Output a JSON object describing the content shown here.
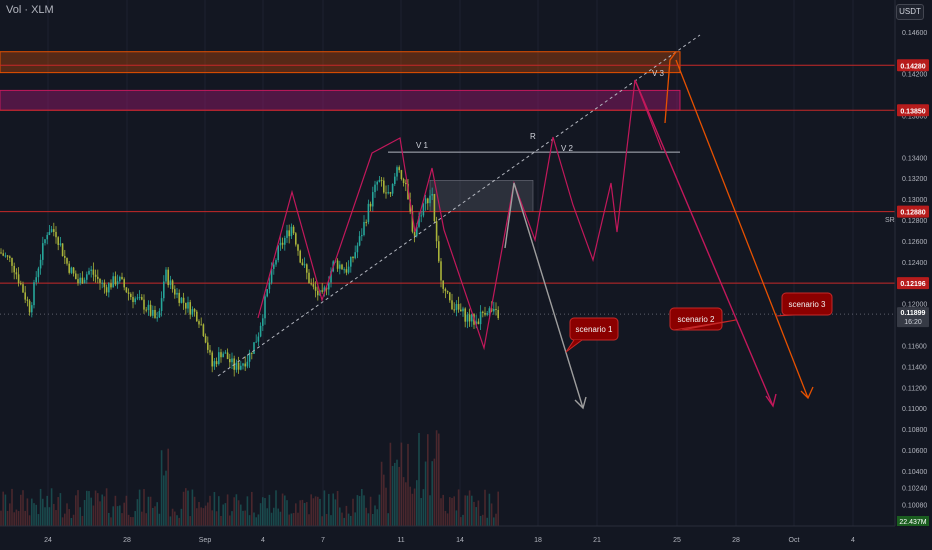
{
  "header": {
    "symbol": "Vol · XLM",
    "currency_button": "USDT"
  },
  "colors": {
    "background": "#131722",
    "up": "#26a69a",
    "down": "#a9b33a",
    "level_line": "#c62828",
    "path_pink": "#c2185b",
    "arrow_gray": "#9e9e9e",
    "arrow_orange": "#e65100",
    "volume_green": "#26a69a",
    "volume_red": "#8e3b3b"
  },
  "chart_data": {
    "type": "candlestick",
    "x_ticks": [
      "24",
      "28",
      "Sep",
      "4",
      "7",
      "11",
      "14",
      "18",
      "21",
      "25",
      "28",
      "Oct",
      "4"
    ],
    "y_ticks": [
      "0.14600",
      "0.14200",
      "0.13800",
      "0.13400",
      "0.13200",
      "0.13000",
      "0.12800",
      "0.12600",
      "0.12400",
      "0.12000",
      "0.11600",
      "0.11400",
      "0.11200",
      "0.11000",
      "0.10800",
      "0.10600",
      "0.10400",
      "0.10240",
      "0.10080"
    ],
    "ylim": [
      0.0993,
      0.1479
    ],
    "price_levels": [
      {
        "label": "0.14280",
        "value": 0.1428
      },
      {
        "label": "0.13850",
        "value": 0.1385
      },
      {
        "label": "0.12880",
        "value": 0.1288
      },
      {
        "label": "0.12196",
        "value": 0.12196
      }
    ],
    "current_price": {
      "label": "0.11899",
      "countdown": "16:20"
    },
    "volume_label": "22.437M",
    "sr_label": "SR",
    "zones": [
      {
        "name": "upper-zone",
        "from": 0.1421,
        "to": 0.1441
      },
      {
        "name": "second-zone",
        "from": 0.1385,
        "to": 0.1404
      }
    ],
    "annotations": {
      "wave_labels": [
        "V 1",
        "V 2",
        "V 3"
      ],
      "resistance_label": "R",
      "scenarios": [
        "scenario 1",
        "scenario 2",
        "scenario 3"
      ]
    }
  }
}
